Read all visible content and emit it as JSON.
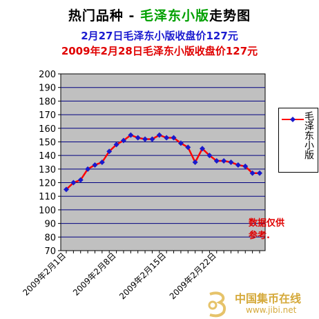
{
  "header": {
    "title_main": "热门品种",
    "title_sep": " - ",
    "title_product": "毛泽东小版",
    "title_suffix": "走势图",
    "subtitle_1": "2月27日毛泽东小版收盘价127元",
    "subtitle_2": "2009年2月28日毛泽东小版收盘价127元"
  },
  "note": "数据仅供参考.",
  "watermark": {
    "name": "中国集币在线",
    "url": "www.jibi.net"
  },
  "colors": {
    "line": "#ff0000",
    "marker": "#1a1acc",
    "plot_bg": "#c0c0c0",
    "grid": "#000080"
  },
  "chart_data": {
    "type": "line",
    "title": "",
    "xlabel": "",
    "ylabel": "",
    "ylim": [
      70,
      200
    ],
    "y_ticks": [
      70,
      80,
      90,
      100,
      110,
      120,
      130,
      140,
      150,
      160,
      170,
      180,
      190,
      200
    ],
    "grid": true,
    "legend_position": "right",
    "x_tick_labels": [
      "2009年2月1日",
      "2009年2月8日",
      "2009年2月15日",
      "2009年2月22日"
    ],
    "x_tick_index": [
      0,
      7,
      14,
      21
    ],
    "x": [
      "2009-02-01",
      "2009-02-02",
      "2009-02-03",
      "2009-02-04",
      "2009-02-05",
      "2009-02-06",
      "2009-02-07",
      "2009-02-08",
      "2009-02-09",
      "2009-02-10",
      "2009-02-11",
      "2009-02-12",
      "2009-02-13",
      "2009-02-14",
      "2009-02-15",
      "2009-02-16",
      "2009-02-17",
      "2009-02-18",
      "2009-02-19",
      "2009-02-20",
      "2009-02-21",
      "2009-02-22",
      "2009-02-23",
      "2009-02-24",
      "2009-02-25",
      "2009-02-26",
      "2009-02-27",
      "2009-02-28"
    ],
    "series": [
      {
        "name": "毛泽东小版",
        "values": [
          115,
          120,
          122,
          130,
          133,
          135,
          143,
          148,
          151,
          155,
          153,
          152,
          152,
          155,
          153,
          153,
          149,
          146,
          135,
          145,
          140,
          136,
          136,
          135,
          133,
          132,
          127,
          127
        ]
      }
    ]
  }
}
